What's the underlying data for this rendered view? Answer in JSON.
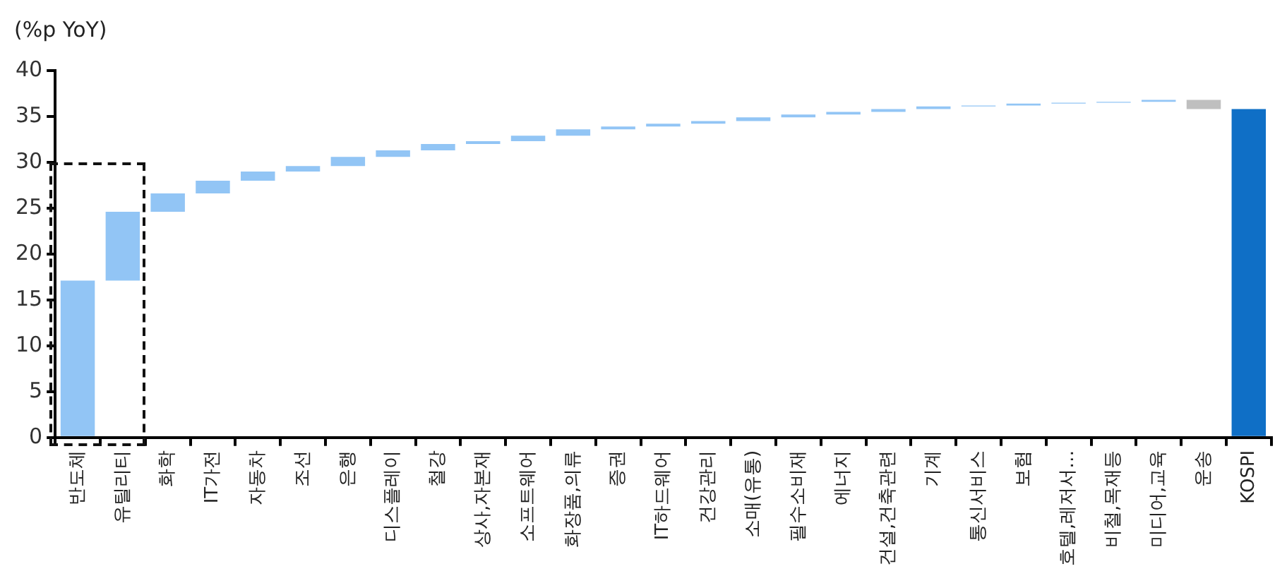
{
  "chart_data": {
    "type": "bar",
    "ylabel": "(%p YoY)",
    "categories": [
      "반도체",
      "유틸리티",
      "화학",
      "IT가전",
      "자동차",
      "조선",
      "은행",
      "디스플레이",
      "철강",
      "상사,자본재",
      "소프트웨어",
      "화장품,의류",
      "증권",
      "IT하드웨어",
      "건강관리",
      "소매(유통)",
      "필수소비재",
      "에너지",
      "건설,건축관련",
      "기계",
      "통신서비스",
      "보험",
      "호텔,레저서…",
      "비철,목재등",
      "미디어,교육",
      "운송",
      "KOSPI"
    ],
    "values": [
      17.1,
      7.5,
      2.0,
      1.4,
      1.0,
      0.6,
      1.0,
      0.7,
      0.7,
      0.3,
      0.6,
      0.7,
      0.3,
      0.3,
      0.3,
      0.4,
      0.3,
      0.3,
      0.3,
      0.3,
      0.1,
      0.2,
      0.1,
      0.1,
      0.2,
      -1.0,
      35.8
    ],
    "base": [
      0,
      17.1,
      24.6,
      26.6,
      28.0,
      29.0,
      29.6,
      30.6,
      31.3,
      32.0,
      32.3,
      32.9,
      33.6,
      33.9,
      34.2,
      34.5,
      34.9,
      35.2,
      35.5,
      35.8,
      36.1,
      36.2,
      36.4,
      36.5,
      36.6,
      36.8,
      0
    ],
    "colors": [
      "#92c5f5",
      "#92c5f5",
      "#92c5f5",
      "#92c5f5",
      "#92c5f5",
      "#92c5f5",
      "#92c5f5",
      "#92c5f5",
      "#92c5f5",
      "#92c5f5",
      "#92c5f5",
      "#92c5f5",
      "#92c5f5",
      "#92c5f5",
      "#92c5f5",
      "#92c5f5",
      "#92c5f5",
      "#92c5f5",
      "#92c5f5",
      "#92c5f5",
      "#92c5f5",
      "#92c5f5",
      "#92c5f5",
      "#92c5f5",
      "#92c5f5",
      "#bfbfbf",
      "#0f6fc6"
    ],
    "ylim": [
      0,
      40
    ],
    "yticks": [
      0,
      5,
      10,
      15,
      20,
      25,
      30,
      35,
      40
    ],
    "grid": false,
    "legend": false
  }
}
